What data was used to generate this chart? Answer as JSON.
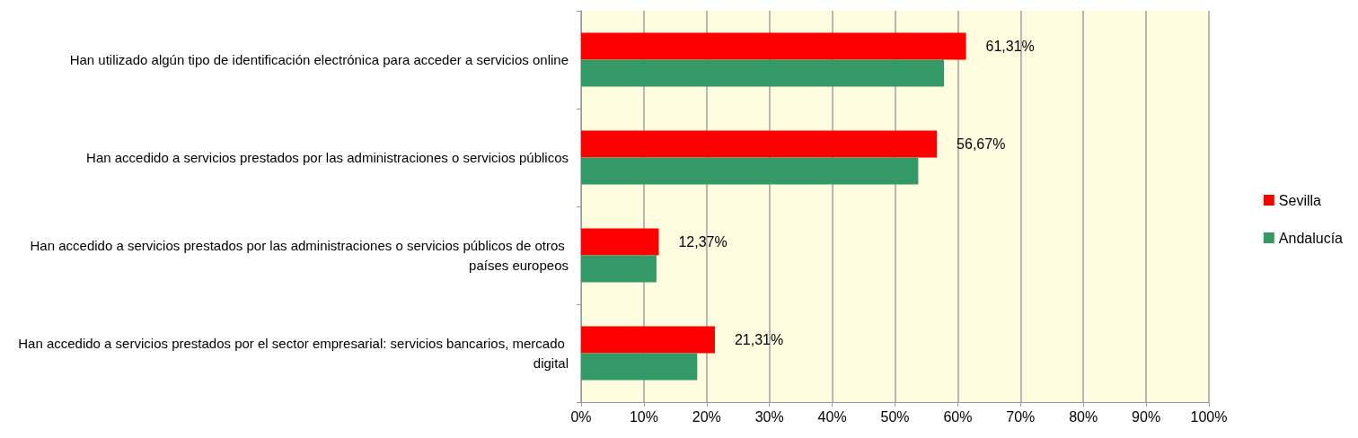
{
  "chart_data": {
    "type": "bar",
    "orientation": "horizontal",
    "categories": [
      "Han utilizado algún tipo de identificación electrónica para acceder a servicios online",
      "Han accedido a servicios prestados por las administraciones o servicios públicos",
      "Han accedido a servicios prestados por las administraciones o servicios públicos de otros países europeos",
      "Han accedido a servicios prestados por el sector empresarial: servicios bancarios, mercado digital"
    ],
    "series": [
      {
        "name": "Sevilla",
        "color": "#ff0000",
        "values": [
          61.31,
          56.67,
          12.37,
          21.31
        ],
        "value_labels": [
          "61,31%",
          "56,67%",
          "12,37%",
          "21,31%"
        ]
      },
      {
        "name": "Andalucía",
        "color": "#339966",
        "values": [
          57.8,
          53.7,
          12.0,
          18.5
        ]
      }
    ],
    "xlim": [
      0,
      100
    ],
    "xticks": [
      {
        "value": 0,
        "label": "0%"
      },
      {
        "value": 10,
        "label": "10%"
      },
      {
        "value": 20,
        "label": "20%"
      },
      {
        "value": 30,
        "label": "30%"
      },
      {
        "value": 40,
        "label": "40%"
      },
      {
        "value": 50,
        "label": "50%"
      },
      {
        "value": 60,
        "label": "60%"
      },
      {
        "value": 70,
        "label": "70%"
      },
      {
        "value": 80,
        "label": "80%"
      },
      {
        "value": 90,
        "label": "90%"
      },
      {
        "value": 100,
        "label": "100%"
      }
    ],
    "grid": "x",
    "legend": "right"
  }
}
